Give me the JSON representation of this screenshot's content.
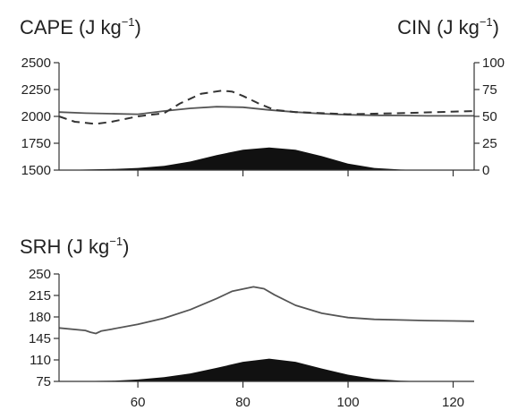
{
  "chart_data": [
    {
      "type": "line",
      "left_axis_label": {
        "prefix": "CAPE (J kg",
        "sup": "−1",
        "suffix": ")"
      },
      "right_axis_label": {
        "prefix": "CIN (J kg",
        "sup": "−1",
        "suffix": ")"
      },
      "x_range": [
        45,
        124
      ],
      "x_ticks": [
        60,
        80,
        100,
        120
      ],
      "x_tick_labels_shown": false,
      "y_left_range": [
        1500,
        2500
      ],
      "y_left_ticks": [
        "2500",
        "2250",
        "2000",
        "1750",
        "1500"
      ],
      "y_right_range": [
        0,
        100
      ],
      "y_right_ticks": [
        "100",
        "75",
        "50",
        "25",
        "0"
      ],
      "series": [
        {
          "style": "solid",
          "axis": "left",
          "x": [
            45,
            50,
            55,
            60,
            65,
            70,
            75,
            80,
            85,
            90,
            95,
            100,
            105,
            110,
            115,
            124
          ],
          "y": [
            2040,
            2030,
            2025,
            2020,
            2050,
            2075,
            2090,
            2085,
            2060,
            2040,
            2025,
            2015,
            2010,
            2008,
            2005,
            2005
          ]
        },
        {
          "style": "dashed",
          "axis": "right",
          "x": [
            45,
            48,
            52,
            55,
            60,
            65,
            68,
            72,
            76,
            78,
            80,
            83,
            86,
            90,
            95,
            100,
            110,
            124
          ],
          "y": [
            50,
            45,
            43,
            45,
            50,
            53,
            62,
            71,
            74,
            73,
            69,
            62,
            56,
            54,
            53,
            52,
            53,
            55
          ]
        },
        {
          "style": "filled",
          "axis": "left",
          "x": [
            45,
            55,
            60,
            65,
            70,
            75,
            80,
            85,
            90,
            95,
            100,
            105,
            110,
            115,
            124
          ],
          "y": [
            1500,
            1510,
            1520,
            1540,
            1580,
            1640,
            1690,
            1710,
            1690,
            1630,
            1560,
            1520,
            1505,
            1500,
            1500
          ]
        }
      ]
    },
    {
      "type": "line",
      "left_axis_label": {
        "prefix": "SRH (J kg",
        "sup": "−1",
        "suffix": ")"
      },
      "x_range": [
        45,
        124
      ],
      "x_ticks": [
        "60",
        "80",
        "100",
        "120"
      ],
      "y_left_range": [
        75,
        250
      ],
      "y_left_ticks": [
        "250",
        "215",
        "180",
        "145",
        "110",
        "75"
      ],
      "series": [
        {
          "style": "solid",
          "axis": "left",
          "x": [
            45,
            50,
            51,
            52,
            53,
            55,
            60,
            65,
            70,
            75,
            78,
            82,
            84,
            86,
            90,
            95,
            100,
            105,
            110,
            115,
            124
          ],
          "y": [
            162,
            158,
            155,
            153,
            157,
            160,
            168,
            178,
            192,
            210,
            222,
            229,
            226,
            216,
            199,
            186,
            179,
            176,
            175,
            174,
            173
          ]
        },
        {
          "style": "filled",
          "axis": "left",
          "x": [
            45,
            55,
            60,
            65,
            70,
            75,
            80,
            85,
            90,
            95,
            100,
            105,
            110,
            115,
            124
          ],
          "y": [
            75,
            76,
            78,
            82,
            88,
            97,
            107,
            112,
            107,
            96,
            86,
            79,
            76,
            75,
            75
          ]
        }
      ]
    }
  ]
}
